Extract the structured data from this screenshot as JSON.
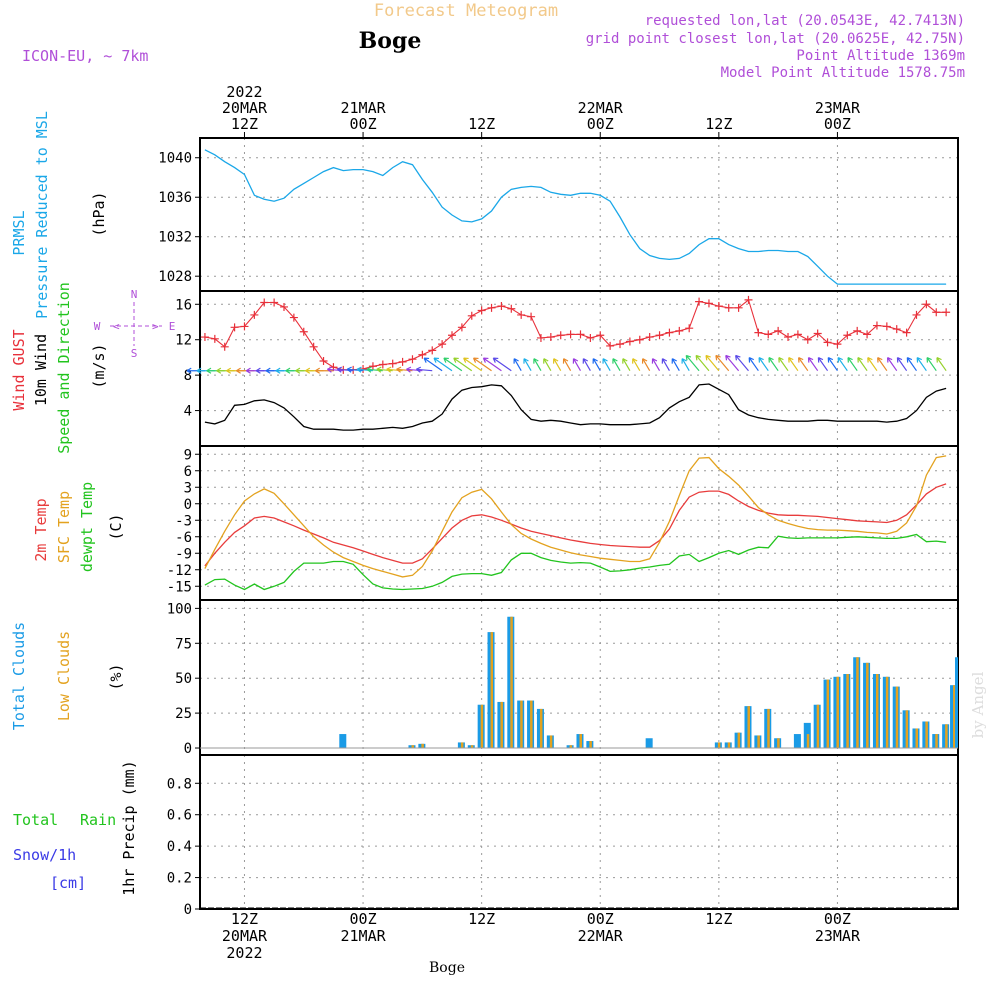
{
  "header": {
    "title": "Forecast Meteogram",
    "location": "Boge",
    "model": "ICON-EU, ~ 7km",
    "requested": "requested lon,lat (20.0543E, 42.7413N)",
    "gridpoint": "grid point closest lon,lat (20.0625E, 42.75N)",
    "altitude": "Point Altitude 1369m",
    "model_altitude": "Model Point Altitude 1578.75m",
    "watermark": "by Angel",
    "footer": "Boge"
  },
  "time_axis": {
    "top_ticks": [
      {
        "t": 0,
        "lines": [
          "2022",
          "20MAR",
          "12Z"
        ]
      },
      {
        "t": 12,
        "lines": [
          "21MAR",
          "00Z"
        ]
      },
      {
        "t": 24,
        "lines": [
          "12Z"
        ]
      },
      {
        "t": 36,
        "lines": [
          "22MAR",
          "00Z"
        ]
      },
      {
        "t": 48,
        "lines": [
          "12Z"
        ]
      },
      {
        "t": 60,
        "lines": [
          "23MAR",
          "00Z"
        ]
      }
    ],
    "bottom_ticks": [
      {
        "t": 0,
        "lines": [
          "12Z",
          "20MAR",
          "2022"
        ]
      },
      {
        "t": 12,
        "lines": [
          "00Z",
          "21MAR"
        ]
      },
      {
        "t": 24,
        "lines": [
          "12Z"
        ]
      },
      {
        "t": 36,
        "lines": [
          "00Z",
          "22MAR"
        ]
      },
      {
        "t": 48,
        "lines": [
          "12Z"
        ]
      },
      {
        "t": 60,
        "lines": [
          "00Z",
          "23MAR"
        ]
      }
    ]
  },
  "panels": {
    "pressure": {
      "label1": "PRMSL",
      "label2": "Pressure Reduced to MSL",
      "unit": "(hPa)"
    },
    "wind": {
      "label1": "Wind GUST",
      "label2": "10m Wind",
      "label3": "Speed and Direction",
      "unit": "(m/s)",
      "compass": {
        "n": "N",
        "s": "S",
        "w": "W",
        "e": "E"
      }
    },
    "temp": {
      "label1": "2m Temp",
      "label2": "SFC Temp",
      "label3": "dewpt Temp",
      "unit": "(C)"
    },
    "clouds": {
      "label1": "Total Clouds",
      "label2": "Low Clouds",
      "unit": "(%)"
    },
    "precip": {
      "label1": "Total",
      "label1b": "Rain",
      "label2": "Snow/1h",
      "label3": "[cm]",
      "unit": "1hr Precip (mm)"
    }
  },
  "colors": {
    "pressure": "#1aa7e8",
    "gust": "#e8303a",
    "wind": "#000000",
    "t2m": "#e83c3c",
    "sfc": "#e3a21f",
    "dew": "#22c41e",
    "total_clouds": "#1a9be6",
    "low_clouds": "#e3a21f",
    "rain": "#22c41e",
    "snow": "#3a3ae6",
    "header_title": "#f2c98a",
    "header_info": "#b04fd8"
  },
  "chart_data": [
    {
      "type": "line",
      "name": "pressure",
      "x": [
        -4,
        -3,
        -2,
        -1,
        0,
        1,
        2,
        3,
        4,
        5,
        6,
        7,
        8,
        9,
        10,
        11,
        12,
        13,
        14,
        15,
        16,
        17,
        18,
        19,
        20,
        21,
        22,
        23,
        24,
        25,
        26,
        27,
        28,
        29,
        30,
        31,
        32,
        33,
        34,
        35,
        36,
        37,
        38,
        39,
        40,
        41,
        42,
        43,
        44,
        45,
        46,
        47,
        48,
        49,
        50,
        51,
        52,
        53,
        54,
        55,
        56,
        57,
        58,
        59,
        60,
        61,
        62,
        63,
        64,
        65,
        66,
        67,
        68,
        69,
        70,
        71
      ],
      "series": [
        {
          "values": [
            1040.8,
            1040.3,
            1039.6,
            1039.0,
            1038.3,
            1036.2,
            1035.8,
            1035.6,
            1035.9,
            1036.8,
            1037.4,
            1038.0,
            1038.6,
            1039.0,
            1038.7,
            1038.8,
            1038.8,
            1038.6,
            1038.2,
            1039.0,
            1039.6,
            1039.3,
            1037.8,
            1036.5,
            1035.0,
            1034.2,
            1033.6,
            1033.5,
            1033.8,
            1034.6,
            1036.0,
            1036.8,
            1037.0,
            1037.1,
            1037.0,
            1036.5,
            1036.3,
            1036.2,
            1036.4,
            1036.4,
            1036.2,
            1035.6,
            1034.0,
            1032.2,
            1030.8,
            1030.1,
            1029.8,
            1029.7,
            1029.8,
            1030.3,
            1031.2,
            1031.8,
            1031.8,
            1031.2,
            1030.8,
            1030.5,
            1030.5,
            1030.6,
            1030.6,
            1030.5,
            1030.5,
            1030.0,
            1029.0,
            1028.0,
            1027.2,
            1027.2,
            1027.2,
            1027.2,
            1027.2,
            1027.2,
            1027.2,
            1027.2,
            1027.2,
            1027.2,
            1027.2,
            1027.2
          ]
        }
      ],
      "yticks": [
        1028,
        1032,
        1036,
        1040
      ],
      "ylim": [
        1026.5,
        1042.0
      ]
    },
    {
      "type": "line",
      "name": "wind",
      "x": [
        -4,
        -3,
        -2,
        -1,
        0,
        1,
        2,
        3,
        4,
        5,
        6,
        7,
        8,
        9,
        10,
        11,
        12,
        13,
        14,
        15,
        16,
        17,
        18,
        19,
        20,
        21,
        22,
        23,
        24,
        25,
        26,
        27,
        28,
        29,
        30,
        31,
        32,
        33,
        34,
        35,
        36,
        37,
        38,
        39,
        40,
        41,
        42,
        43,
        44,
        45,
        46,
        47,
        48,
        49,
        50,
        51,
        52,
        53,
        54,
        55,
        56,
        57,
        58,
        59,
        60,
        61,
        62,
        63,
        64,
        65,
        66,
        67,
        68,
        69,
        70,
        71
      ],
      "series": [
        {
          "values": [
            12.3,
            12.1,
            11.2,
            13.4,
            13.5,
            14.8,
            16.2,
            16.2,
            15.7,
            14.5,
            12.9,
            11.2,
            9.6,
            8.9,
            8.6,
            8.6,
            8.7,
            9.0,
            9.2,
            9.3,
            9.5,
            9.8,
            10.3,
            10.8,
            11.5,
            12.5,
            13.4,
            14.7,
            15.3,
            15.6,
            15.8,
            15.5,
            14.8,
            14.6,
            12.2,
            12.3,
            12.5,
            12.6,
            12.6,
            12.2,
            12.5,
            11.3,
            11.5,
            11.8,
            12.0,
            12.3,
            12.5,
            12.8,
            13.0,
            13.3,
            16.3,
            16.1,
            15.8,
            15.6,
            15.6,
            16.5,
            12.8,
            12.6,
            13.0,
            12.3,
            12.6,
            12.0,
            12.7,
            11.7,
            11.5,
            12.5,
            13.0,
            12.6,
            13.6,
            13.5,
            13.2,
            12.8,
            14.8,
            16.0,
            15.1,
            15.1
          ]
        },
        {
          "values": [
            2.7,
            2.5,
            2.9,
            4.6,
            4.7,
            5.1,
            5.2,
            4.9,
            4.3,
            3.3,
            2.2,
            1.9,
            1.9,
            1.9,
            1.8,
            1.8,
            1.9,
            1.9,
            2.0,
            2.1,
            2.0,
            2.2,
            2.6,
            2.8,
            3.6,
            5.3,
            6.3,
            6.6,
            6.7,
            6.9,
            6.8,
            5.7,
            4.1,
            3.0,
            2.8,
            2.9,
            2.8,
            2.6,
            2.4,
            2.5,
            2.5,
            2.4,
            2.4,
            2.4,
            2.5,
            2.6,
            3.2,
            4.3,
            5.0,
            5.5,
            6.9,
            7.0,
            6.4,
            5.8,
            4.1,
            3.5,
            3.2,
            3.0,
            2.9,
            2.8,
            2.8,
            2.8,
            2.9,
            2.9,
            2.8,
            2.8,
            2.8,
            2.8,
            2.8,
            2.7,
            2.8,
            3.1,
            4.0,
            5.5,
            6.2,
            6.5
          ]
        }
      ],
      "yticks": [
        4,
        8,
        12,
        16
      ],
      "ylim": [
        0,
        17.5
      ]
    },
    {
      "type": "line",
      "name": "temperature",
      "x": [
        -4,
        -3,
        -2,
        -1,
        0,
        1,
        2,
        3,
        4,
        5,
        6,
        7,
        8,
        9,
        10,
        11,
        12,
        13,
        14,
        15,
        16,
        17,
        18,
        19,
        20,
        21,
        22,
        23,
        24,
        25,
        26,
        27,
        28,
        29,
        30,
        31,
        32,
        33,
        34,
        35,
        36,
        37,
        38,
        39,
        40,
        41,
        42,
        43,
        44,
        45,
        46,
        47,
        48,
        49,
        50,
        51,
        52,
        53,
        54,
        55,
        56,
        57,
        58,
        59,
        60,
        61,
        62,
        63,
        64,
        65,
        66,
        67,
        68,
        69,
        70,
        71
      ],
      "series": [
        {
          "values": [
            -11.3,
            -9.0,
            -7.0,
            -5.2,
            -4.0,
            -2.6,
            -2.3,
            -2.6,
            -3.3,
            -4.0,
            -4.8,
            -5.5,
            -6.2,
            -7.0,
            -7.5,
            -8.0,
            -8.6,
            -9.2,
            -9.8,
            -10.3,
            -10.8,
            -10.8,
            -10.0,
            -8.2,
            -6.3,
            -4.4,
            -3.0,
            -2.2,
            -2.0,
            -2.4,
            -3.0,
            -3.7,
            -4.4,
            -5.0,
            -5.4,
            -5.8,
            -6.2,
            -6.6,
            -6.9,
            -7.2,
            -7.4,
            -7.6,
            -7.7,
            -7.8,
            -7.9,
            -7.9,
            -6.7,
            -4.6,
            -1.2,
            1.2,
            2.1,
            2.3,
            2.3,
            1.7,
            0.5,
            -0.5,
            -1.2,
            -1.7,
            -2.0,
            -2.1,
            -2.1,
            -2.2,
            -2.3,
            -2.5,
            -2.7,
            -2.9,
            -3.1,
            -3.2,
            -3.3,
            -3.4,
            -3.0,
            -2.0,
            -0.2,
            1.8,
            3.0,
            3.6
          ]
        },
        {
          "values": [
            -11.8,
            -8.3,
            -5.0,
            -2.0,
            0.5,
            1.8,
            2.7,
            1.9,
            0.0,
            -2.0,
            -4.0,
            -6.0,
            -7.5,
            -8.8,
            -9.8,
            -10.5,
            -11.2,
            -11.8,
            -12.3,
            -12.8,
            -13.3,
            -13.0,
            -11.4,
            -8.6,
            -5.0,
            -1.5,
            1.1,
            2.1,
            2.6,
            0.9,
            -1.5,
            -3.8,
            -5.4,
            -6.4,
            -7.2,
            -7.9,
            -8.4,
            -8.9,
            -9.3,
            -9.6,
            -9.9,
            -10.1,
            -10.3,
            -10.5,
            -10.5,
            -10.0,
            -7.0,
            -3.2,
            1.5,
            6.0,
            8.3,
            8.4,
            6.4,
            5.0,
            3.4,
            1.4,
            -0.7,
            -2.0,
            -3.0,
            -3.6,
            -4.1,
            -4.5,
            -4.7,
            -4.8,
            -4.8,
            -4.9,
            -5.0,
            -5.2,
            -5.3,
            -5.5,
            -5.0,
            -3.5,
            -0.4,
            5.2,
            8.4,
            8.7
          ]
        },
        {
          "values": [
            -14.8,
            -13.8,
            -13.7,
            -14.8,
            -15.6,
            -14.6,
            -15.6,
            -15.0,
            -14.3,
            -12.3,
            -10.8,
            -10.8,
            -10.8,
            -10.5,
            -10.5,
            -11.0,
            -12.9,
            -14.6,
            -15.3,
            -15.5,
            -15.6,
            -15.5,
            -15.4,
            -15.0,
            -14.3,
            -13.2,
            -12.8,
            -12.7,
            -12.7,
            -13.0,
            -12.5,
            -10.2,
            -9.0,
            -9.0,
            -9.8,
            -10.3,
            -10.6,
            -10.8,
            -10.7,
            -10.8,
            -11.5,
            -12.3,
            -12.2,
            -12.0,
            -11.7,
            -11.5,
            -11.2,
            -11.0,
            -9.5,
            -9.2,
            -10.5,
            -9.8,
            -9.0,
            -8.5,
            -9.2,
            -8.4,
            -7.9,
            -8.0,
            -5.9,
            -6.2,
            -6.3,
            -6.2,
            -6.2,
            -6.2,
            -6.2,
            -6.1,
            -6.0,
            -6.1,
            -6.2,
            -6.3,
            -6.3,
            -6.0,
            -5.6,
            -6.9,
            -6.8,
            -7.0
          ]
        }
      ],
      "yticks": [
        -15,
        -12,
        -9,
        -6,
        -3,
        0,
        3,
        6,
        9
      ],
      "ylim": [
        -17.5,
        10.5
      ]
    },
    {
      "type": "bar",
      "name": "clouds",
      "x": [
        -4,
        -3,
        -2,
        -1,
        0,
        1,
        2,
        3,
        4,
        5,
        6,
        7,
        8,
        9,
        10,
        11,
        12,
        13,
        14,
        15,
        16,
        17,
        18,
        19,
        20,
        21,
        22,
        23,
        24,
        25,
        26,
        27,
        28,
        29,
        30,
        31,
        32,
        33,
        34,
        35,
        36,
        37,
        38,
        39,
        40,
        41,
        42,
        43,
        44,
        45,
        46,
        47,
        48,
        49,
        50,
        51,
        52,
        53,
        54,
        55,
        56,
        57,
        58,
        59,
        60,
        61,
        62,
        63,
        64,
        65,
        66,
        67,
        68,
        69,
        70,
        71
      ],
      "series": [
        {
          "values": [
            0,
            0,
            0,
            0,
            0,
            0,
            0,
            0,
            0,
            0,
            0,
            0,
            0,
            0,
            10,
            0,
            0,
            0,
            0,
            0,
            0,
            2,
            3,
            0,
            0,
            0,
            4,
            2,
            31,
            83,
            33,
            94,
            34,
            34,
            28,
            9,
            0,
            2,
            10,
            5,
            0,
            0,
            0,
            0,
            0,
            7,
            0,
            0,
            0,
            0,
            0,
            0,
            4,
            4,
            11,
            30,
            9,
            28,
            7,
            0,
            10,
            18,
            31,
            49,
            51,
            53,
            65,
            61,
            53,
            51,
            44,
            27,
            14,
            19,
            10,
            17
          ]
        },
        {
          "values": [
            0,
            0,
            0,
            0,
            0,
            0,
            0,
            0,
            0,
            0,
            0,
            0,
            0,
            0,
            0,
            0,
            0,
            0,
            0,
            0,
            0,
            2,
            3,
            0,
            0,
            0,
            4,
            2,
            31,
            83,
            33,
            94,
            34,
            34,
            28,
            9,
            0,
            2,
            10,
            5,
            0,
            0,
            0,
            0,
            0,
            0,
            0,
            0,
            0,
            0,
            0,
            0,
            4,
            4,
            11,
            30,
            9,
            28,
            7,
            0,
            0,
            10,
            31,
            49,
            51,
            53,
            65,
            61,
            53,
            51,
            44,
            27,
            14,
            19,
            10,
            17
          ]
        }
      ],
      "extra_last": {
        "x": 71.8,
        "total": 45,
        "low": 45,
        "total_end": 65
      },
      "yticks": [
        0,
        25,
        50,
        75,
        100
      ],
      "ylim": [
        -5,
        106
      ]
    },
    {
      "type": "line",
      "name": "precipitation",
      "series": [
        {
          "values": []
        }
      ],
      "yticks": [
        0,
        0.2,
        0.4,
        0.6,
        0.8
      ],
      "ylim": [
        0,
        0.98
      ]
    }
  ]
}
